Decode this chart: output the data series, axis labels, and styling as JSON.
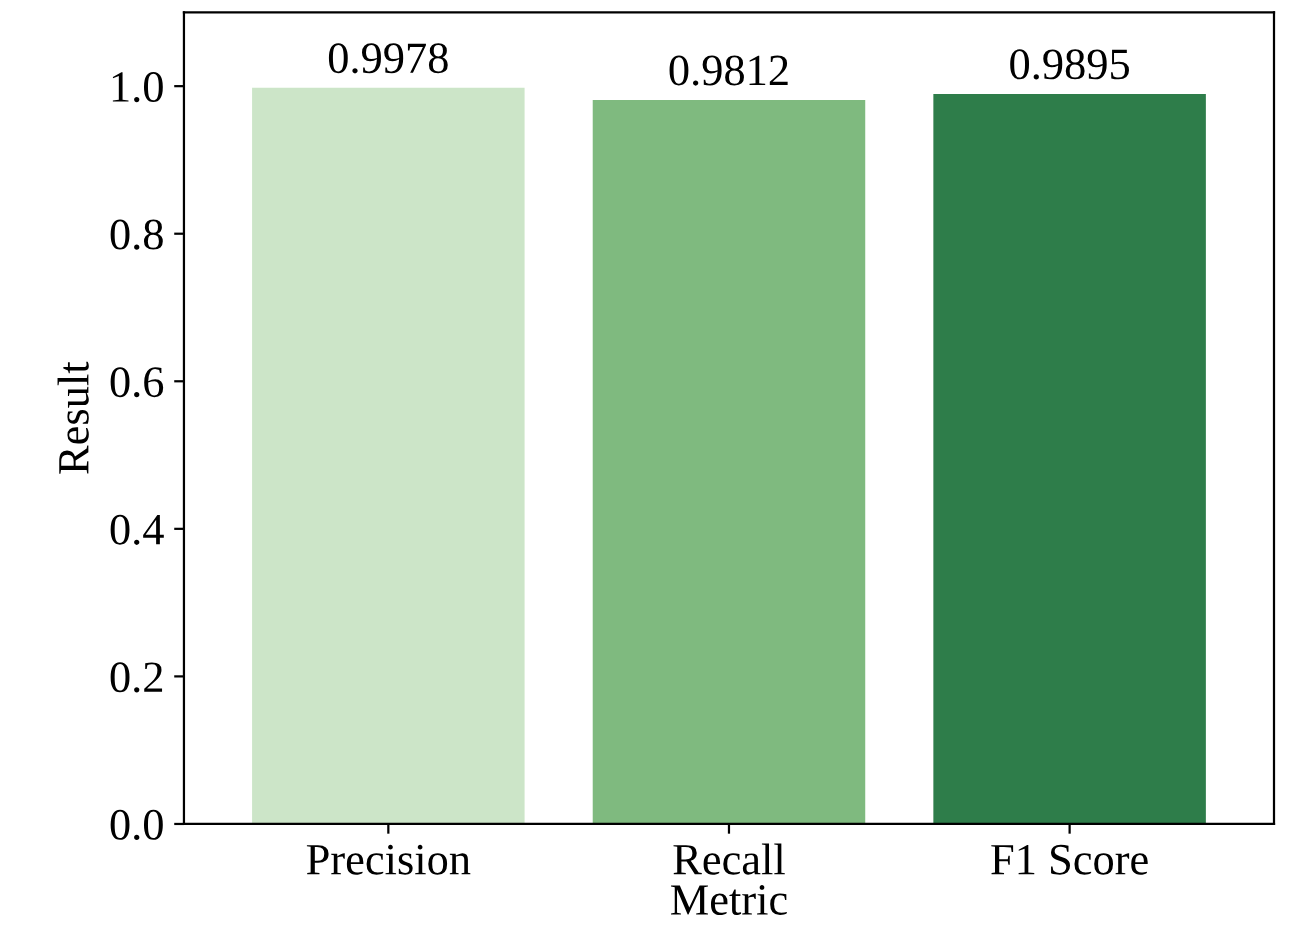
{
  "chart_data": {
    "type": "bar",
    "xlabel": "Metric",
    "ylabel": "Result",
    "categories": [
      "Precision",
      "Recall",
      "F1 Score"
    ],
    "values": [
      0.9978,
      0.9812,
      0.9895
    ],
    "colors": [
      "#cce5c8",
      "#7fba7f",
      "#2e7d4a"
    ],
    "ylim": [
      0,
      1.1
    ],
    "yticks": [
      {
        "value": 0,
        "label": "0.0"
      },
      {
        "value": 0.2,
        "label": "0.2"
      },
      {
        "value": 0.4,
        "label": "0.4"
      },
      {
        "value": 0.6,
        "label": "0.6"
      },
      {
        "value": 0.8,
        "label": "0.8"
      },
      {
        "value": 1.0,
        "label": "1.0"
      }
    ],
    "data_labels": true,
    "grid": false,
    "legend": false
  }
}
